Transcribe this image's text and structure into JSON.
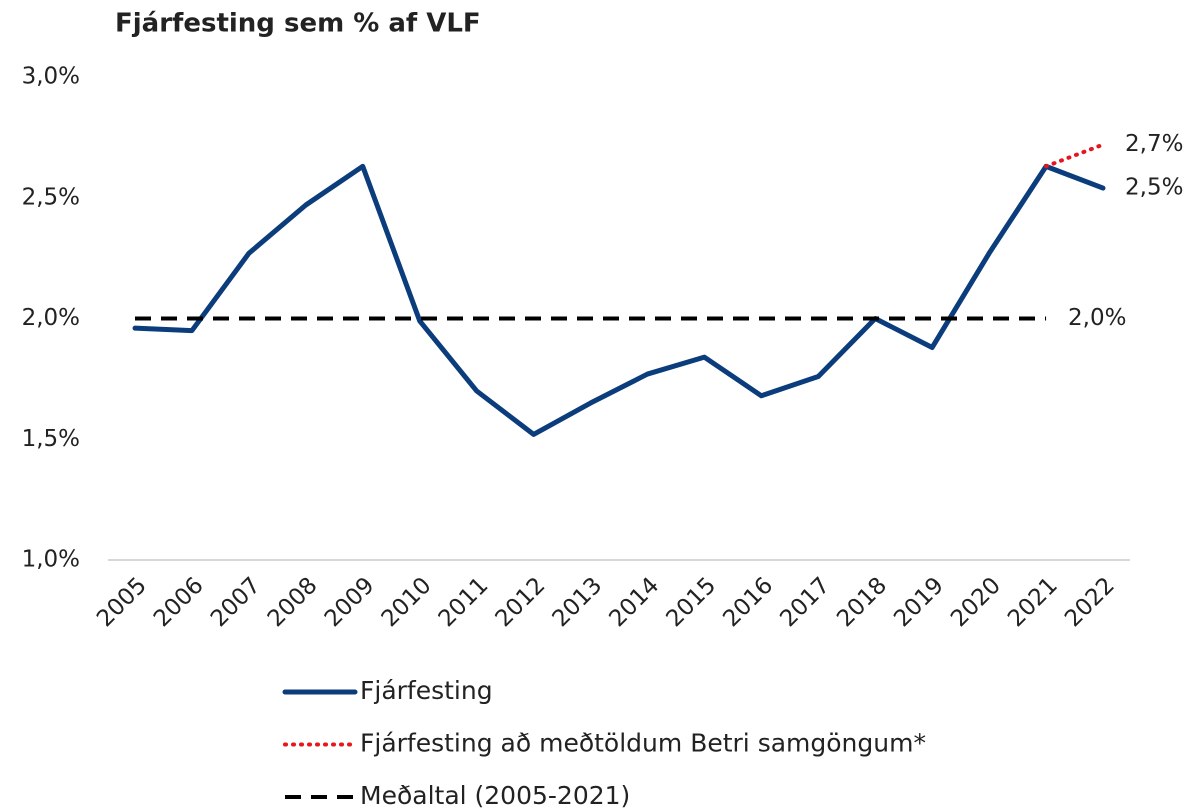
{
  "chart_data": {
    "type": "line",
    "title": "Fjárfesting sem % af VLF",
    "categories": [
      "2005",
      "2006",
      "2007",
      "2008",
      "2009",
      "2010",
      "2011",
      "2012",
      "2013",
      "2014",
      "2015",
      "2016",
      "2017",
      "2018",
      "2019",
      "2020",
      "2021",
      "2022"
    ],
    "series": [
      {
        "name": "Fjárfesting",
        "color": "#0b3d7d",
        "style": "solid",
        "values": [
          1.96,
          1.95,
          2.27,
          2.47,
          2.63,
          1.99,
          1.7,
          1.52,
          1.65,
          1.77,
          1.84,
          1.68,
          1.76,
          2.0,
          1.88,
          2.27,
          2.63,
          2.54
        ],
        "value_labels": [
          null,
          null,
          null,
          null,
          null,
          null,
          null,
          null,
          null,
          null,
          null,
          null,
          null,
          null,
          null,
          null,
          null,
          "2,5%"
        ]
      },
      {
        "name": "Fjárfesting að meðtöldum Betri samgöngum*",
        "color": "#e8141c",
        "style": "dotted",
        "values": [
          null,
          null,
          null,
          null,
          null,
          null,
          null,
          null,
          null,
          null,
          null,
          null,
          null,
          null,
          null,
          null,
          2.63,
          2.72
        ],
        "value_labels": [
          null,
          null,
          null,
          null,
          null,
          null,
          null,
          null,
          null,
          null,
          null,
          null,
          null,
          null,
          null,
          null,
          null,
          "2,7%"
        ]
      },
      {
        "name": "Meðaltal (2005-2021)",
        "color": "#000000",
        "style": "dashed",
        "values": [
          2.0,
          2.0,
          2.0,
          2.0,
          2.0,
          2.0,
          2.0,
          2.0,
          2.0,
          2.0,
          2.0,
          2.0,
          2.0,
          2.0,
          2.0,
          2.0,
          2.0,
          null
        ],
        "value_labels": [
          null,
          null,
          null,
          null,
          null,
          null,
          null,
          null,
          null,
          null,
          null,
          null,
          null,
          null,
          null,
          null,
          "2,0%",
          null
        ]
      }
    ],
    "ylim": [
      1.0,
      3.0
    ],
    "yticks": [
      {
        "value": 1.0,
        "label": "1,0%"
      },
      {
        "value": 1.5,
        "label": "1,5%"
      },
      {
        "value": 2.0,
        "label": "2,0%"
      },
      {
        "value": 2.5,
        "label": "2,5%"
      },
      {
        "value": 3.0,
        "label": "3,0%"
      }
    ],
    "grid": false
  }
}
